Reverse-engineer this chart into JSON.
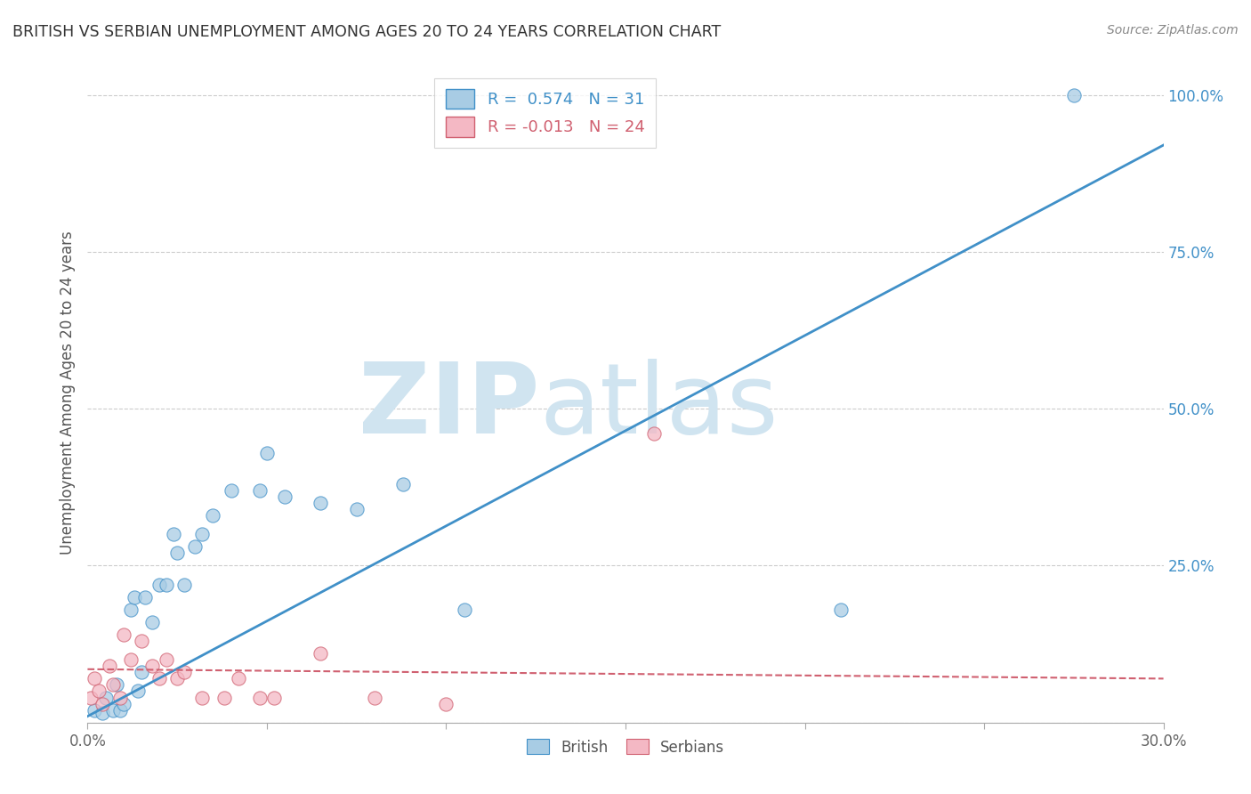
{
  "title": "BRITISH VS SERBIAN UNEMPLOYMENT AMONG AGES 20 TO 24 YEARS CORRELATION CHART",
  "source": "Source: ZipAtlas.com",
  "ylabel": "Unemployment Among Ages 20 to 24 years",
  "xlim": [
    0.0,
    0.3
  ],
  "ylim": [
    0.0,
    1.05
  ],
  "xticks": [
    0.0,
    0.05,
    0.1,
    0.15,
    0.2,
    0.25,
    0.3
  ],
  "xticklabels": [
    "0.0%",
    "",
    "",
    "",
    "",
    "",
    "30.0%"
  ],
  "yticks_right": [
    0.0,
    0.25,
    0.5,
    0.75,
    1.0
  ],
  "yticklabels_right": [
    "",
    "25.0%",
    "50.0%",
    "75.0%",
    "100.0%"
  ],
  "british_R": 0.574,
  "british_N": 31,
  "serbian_R": -0.013,
  "serbian_N": 24,
  "british_color": "#a8cce4",
  "serbian_color": "#f4b8c4",
  "british_line_color": "#4090c8",
  "serbian_line_color": "#d06070",
  "watermark_zip": "ZIP",
  "watermark_atlas": "atlas",
  "watermark_color": "#d0e4f0",
  "british_x": [
    0.002,
    0.004,
    0.005,
    0.007,
    0.008,
    0.009,
    0.01,
    0.012,
    0.013,
    0.014,
    0.015,
    0.016,
    0.018,
    0.02,
    0.022,
    0.024,
    0.025,
    0.027,
    0.03,
    0.032,
    0.035,
    0.04,
    0.048,
    0.05,
    0.055,
    0.065,
    0.075,
    0.088,
    0.105,
    0.21,
    0.275
  ],
  "british_y": [
    0.02,
    0.015,
    0.04,
    0.02,
    0.06,
    0.02,
    0.03,
    0.18,
    0.2,
    0.05,
    0.08,
    0.2,
    0.16,
    0.22,
    0.22,
    0.3,
    0.27,
    0.22,
    0.28,
    0.3,
    0.33,
    0.37,
    0.37,
    0.43,
    0.36,
    0.35,
    0.34,
    0.38,
    0.18,
    0.18,
    1.0
  ],
  "serbian_x": [
    0.001,
    0.002,
    0.003,
    0.004,
    0.006,
    0.007,
    0.009,
    0.01,
    0.012,
    0.015,
    0.018,
    0.02,
    0.022,
    0.025,
    0.027,
    0.032,
    0.038,
    0.042,
    0.048,
    0.052,
    0.065,
    0.08,
    0.1,
    0.158
  ],
  "serbian_y": [
    0.04,
    0.07,
    0.05,
    0.03,
    0.09,
    0.06,
    0.04,
    0.14,
    0.1,
    0.13,
    0.09,
    0.07,
    0.1,
    0.07,
    0.08,
    0.04,
    0.04,
    0.07,
    0.04,
    0.04,
    0.11,
    0.04,
    0.03,
    0.46
  ],
  "marker_size": 120,
  "british_line_x": [
    0.0,
    0.3
  ],
  "british_line_y": [
    0.01,
    0.92
  ],
  "serbian_line_x": [
    0.0,
    0.3
  ],
  "serbian_line_y": [
    0.085,
    0.07
  ]
}
